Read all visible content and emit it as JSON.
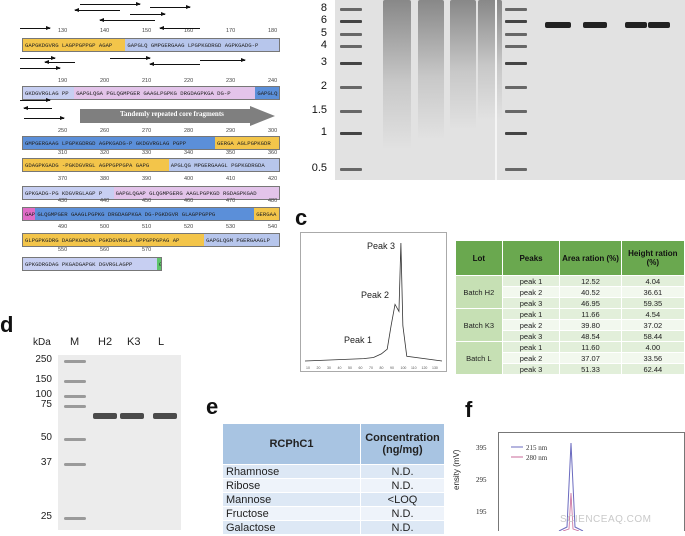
{
  "panels": {
    "c": "c",
    "d": "d",
    "e": "e",
    "f": "f"
  },
  "sequence": {
    "rows": [
      {
        "numbers": [
          "130",
          "140",
          "150",
          "160",
          "170",
          "180"
        ],
        "segments": [
          {
            "text": "GAPGKDGVRG LAGPPGPPGP AGAP",
            "color": "#f3c54a"
          },
          {
            "text": "GAPGLQ GMPGERGAAG LPGPKGDRGD AGPKGADG-P",
            "color": "#b7c6ec"
          }
        ]
      },
      {
        "numbers": [
          "190",
          "200",
          "210",
          "220",
          "230",
          "240"
        ],
        "segments": [
          {
            "text": "GKDGVRGLAG PP",
            "color": "#c7cff2"
          },
          {
            "text": "GAPGLQGA PGLQGMPGER GAAGLPGPKG DRGDAGPKGA DG-P",
            "color": "#e3c4ea"
          },
          {
            "text": "GAPGLQ",
            "color": "#5b8fd9"
          }
        ]
      },
      {
        "numbers": [
          "250",
          "260",
          "270",
          "280",
          "290",
          "300"
        ],
        "segments": [
          {
            "text": "GMPGERGAAG LPGPKGDRGD AGPKGADG-P GKDGVRGLAG PGPP",
            "color": "#5b8fd9"
          },
          {
            "text": "GERGA AGLPGPKGDR",
            "color": "#f3c54a"
          }
        ]
      },
      {
        "numbers": [
          "310",
          "320",
          "330",
          "340",
          "350",
          "360"
        ],
        "segments": [
          {
            "text": "GDAGPKGADG -PGKDGVRGL AGPPGPPGPA GAPG",
            "color": "#f3c54a"
          },
          {
            "text": "APGLQG MPGERGAAGL PGPKGDRGDA",
            "color": "#b7c6ec"
          }
        ]
      },
      {
        "numbers": [
          "370",
          "380",
          "390",
          "400",
          "410",
          "420"
        ],
        "segments": [
          {
            "text": "GPKGADG-PG KDGVRGLAGP P",
            "color": "#c7cff2"
          },
          {
            "text": "GAPGLQGAP GLQGMPGERG AAGLPGPKGD RGDAGPKGAD",
            "color": "#e3c4ea"
          }
        ]
      },
      {
        "numbers": [
          "430",
          "440",
          "450",
          "460",
          "470",
          "480"
        ],
        "segments": [
          {
            "text": "GAP",
            "color": "#e06cc6"
          },
          {
            "text": "GLQGMPGER GAAGLPGPKG DRGDAGPKGA DG-PGKDGVR GLAGPPGPPG",
            "color": "#5b8fd9"
          },
          {
            "text": "GERGAA",
            "color": "#f3c54a"
          }
        ]
      },
      {
        "numbers": [
          "490",
          "500",
          "510",
          "520",
          "530",
          "540"
        ],
        "segments": [
          {
            "text": "GLPGPKGDRG DAGPKGADGA PGKDGVRGLA GPPGPPGPAG AP",
            "color": "#f3c54a"
          },
          {
            "text": "GAPGLQGM PGERGAAGLP",
            "color": "#b7c6ec"
          }
        ]
      },
      {
        "numbers": [
          "550",
          "560",
          "570"
        ],
        "segments": [
          {
            "text": "GPKGDRGDAG PKGADGAPGK DGVRGLAGPP",
            "color": "#c7cff2"
          },
          {
            "text": "G",
            "color": "#5fc56a"
          }
        ]
      }
    ],
    "tandem_label": "Tandemly repeated core fragments"
  },
  "gel_top": {
    "marker_labels": [
      "8",
      "6",
      "5",
      "4",
      "3",
      "2",
      "1.5",
      "1",
      "0.5"
    ]
  },
  "chromatogram": {
    "peak_labels": [
      "Peak 3",
      "Peak 2",
      "Peak 1"
    ],
    "x_ticks": [
      "10",
      "20",
      "30",
      "40",
      "50",
      "60",
      "70",
      "80",
      "90",
      "100",
      "110",
      "120",
      "130"
    ],
    "chart_data": {
      "type": "line",
      "series": [
        {
          "values": [
            [
              0,
              0
            ],
            [
              60,
              2
            ],
            [
              70,
              3
            ],
            [
              78,
              6
            ],
            [
              84,
              10
            ],
            [
              88,
              30
            ],
            [
              92,
              48
            ],
            [
              96,
              42
            ],
            [
              98,
              100
            ],
            [
              100,
              30
            ],
            [
              104,
              4
            ],
            [
              140,
              0
            ]
          ]
        }
      ]
    }
  },
  "lot_table": {
    "headers": [
      "Lot",
      "Peaks",
      "Area ration (%)",
      "Height ration (%)"
    ],
    "groups": [
      {
        "lot": "Batch H2",
        "rows": [
          [
            "peak 1",
            "12.52",
            "4.04"
          ],
          [
            "peak 2",
            "40.52",
            "36.61"
          ],
          [
            "peak 3",
            "46.95",
            "59.35"
          ]
        ]
      },
      {
        "lot": "Batch K3",
        "rows": [
          [
            "peak 1",
            "11.66",
            "4.54"
          ],
          [
            "peak 2",
            "39.80",
            "37.02"
          ],
          [
            "peak 3",
            "48.54",
            "58.44"
          ]
        ]
      },
      {
        "lot": "Batch L",
        "rows": [
          [
            "peak 1",
            "11.60",
            "4.00"
          ],
          [
            "peak 2",
            "37.07",
            "33.56"
          ],
          [
            "peak 3",
            "51.33",
            "62.44"
          ]
        ]
      }
    ]
  },
  "gel_d": {
    "unit": "kDa",
    "lanes": [
      "M",
      "H2",
      "K3",
      "L"
    ],
    "marker_labels": [
      "250",
      "150",
      "100",
      "75",
      "50",
      "37",
      "25"
    ]
  },
  "conc_table": {
    "headers": [
      "RCPhC1",
      "Concentration (ng/mg)"
    ],
    "rows": [
      [
        "Rhamnose",
        "N.D."
      ],
      [
        "Ribose",
        "N.D."
      ],
      [
        "Mannose",
        "<LOQ"
      ],
      [
        "Fructose",
        "N.D."
      ],
      [
        "Galactose",
        "N.D."
      ]
    ]
  },
  "plot_f": {
    "legend": [
      "215 nm",
      "280 nm"
    ],
    "legend_colors": [
      "#6b6bbf",
      "#c96a9a"
    ],
    "y_ticks": [
      "395",
      "295",
      "195"
    ],
    "ylabel": "ensity (mV)"
  },
  "watermark": "SCIENCEAQ.COM"
}
